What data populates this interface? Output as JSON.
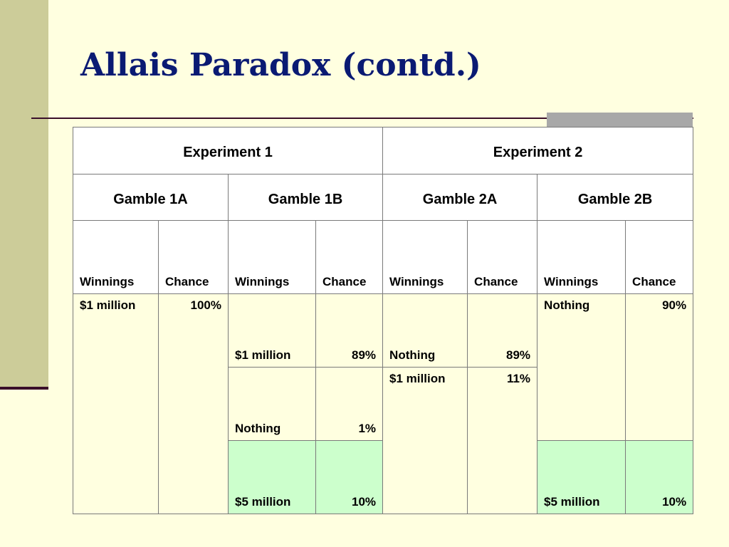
{
  "slide": {
    "title": "Allais Paradox (contd.)"
  },
  "table": {
    "experiments": [
      "Experiment 1",
      "Experiment 2"
    ],
    "gambles": [
      "Gamble 1A",
      "Gamble 1B",
      "Gamble 2A",
      "Gamble 2B"
    ],
    "columns": [
      "Winnings",
      "Chance",
      "Winnings",
      "Chance",
      "Winnings",
      "Chance",
      "Winnings",
      "Chance"
    ],
    "gamble_1a": {
      "winnings": "$1 million",
      "chance": "100%"
    },
    "gamble_1b": [
      {
        "winnings": "$1 million",
        "chance": "89%"
      },
      {
        "winnings": "Nothing",
        "chance": "1%"
      },
      {
        "winnings": "$5 million",
        "chance": "10%"
      }
    ],
    "gamble_2a": [
      {
        "winnings": "Nothing",
        "chance": "89%"
      },
      {
        "winnings": "$1 million",
        "chance": "11%"
      }
    ],
    "gamble_2b": [
      {
        "winnings": "Nothing",
        "chance": "90%"
      },
      {
        "winnings": "$5 million",
        "chance": "10%"
      }
    ]
  },
  "colors": {
    "background": "#ffffe0",
    "sidebar": "#cccc99",
    "title": "#0a1a73",
    "rule": "#3a0f2a",
    "highlight_green": "#ccffcc"
  }
}
